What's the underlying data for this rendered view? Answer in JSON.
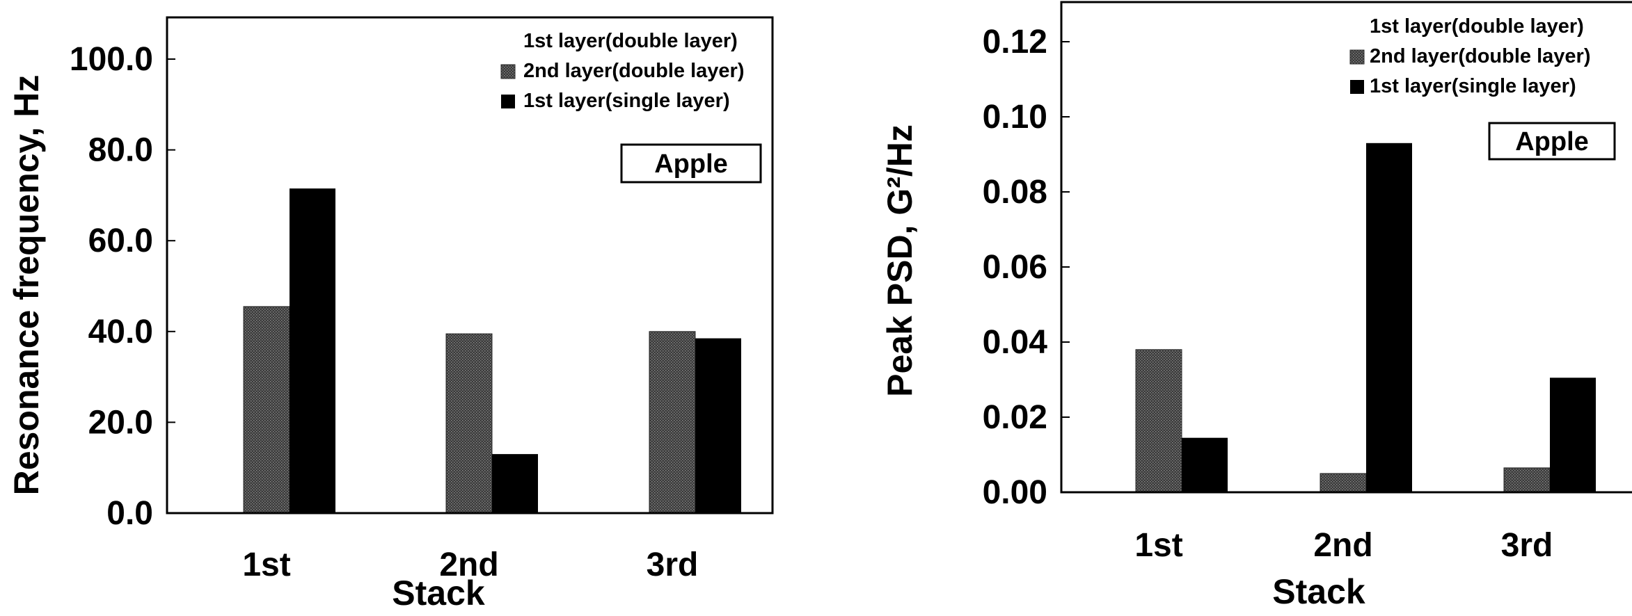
{
  "chart_data": [
    {
      "type": "bar",
      "categories": [
        "1st",
        "2nd",
        "3rd"
      ],
      "series": [
        {
          "name": "1st layer(double layer)",
          "values": [
            0,
            0,
            0
          ]
        },
        {
          "name": "2nd layer(double layer)",
          "values": [
            45.5,
            39.5,
            40.0
          ]
        },
        {
          "name": "1st layer(single layer)",
          "values": [
            71.5,
            13.0,
            38.5
          ]
        }
      ],
      "xlabel": "Stack",
      "ylabel": "Resonance frequency, Hz",
      "ylim": [
        0,
        110
      ],
      "yticks": [
        "0.0",
        "20.0",
        "40.0",
        "60.0",
        "80.0",
        "100.0"
      ],
      "tag": "Apple",
      "legend_position": "top-right",
      "grid": false
    },
    {
      "type": "bar",
      "categories": [
        "1st",
        "2nd",
        "3rd"
      ],
      "series": [
        {
          "name": "1st layer(double layer)",
          "values": [
            0,
            0,
            0
          ]
        },
        {
          "name": "2nd layer(double layer)",
          "values": [
            0.038,
            0.005,
            0.0065
          ]
        },
        {
          "name": "1st layer(single layer)",
          "values": [
            0.0145,
            0.093,
            0.0305
          ]
        }
      ],
      "xlabel": "Stack",
      "ylabel": "Peak PSD, G²/Hz",
      "ylim": [
        0,
        0.13
      ],
      "yticks": [
        "0.00",
        "0.02",
        "0.04",
        "0.06",
        "0.08",
        "0.10",
        "0.12"
      ],
      "tag": "Apple",
      "legend_position": "top-right",
      "grid": false
    }
  ],
  "colors": {
    "series_2": "#4a4a4a",
    "series_3": "#000000"
  }
}
